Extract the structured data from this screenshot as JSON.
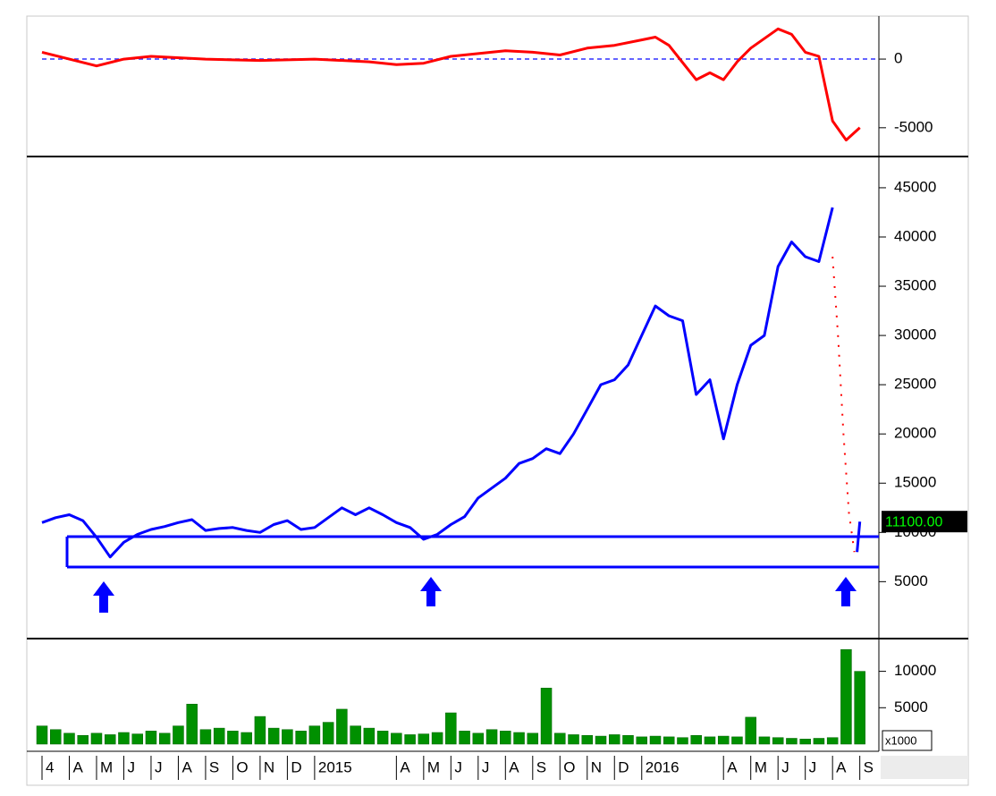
{
  "chart_data": [
    {
      "type": "line",
      "xlim": [
        0,
        30.7
      ],
      "ylim": [
        -6900,
        3000
      ],
      "yticks": [
        0,
        -5000
      ],
      "hlines": [
        0
      ],
      "hline_color": "#3030ff",
      "series": [
        {
          "color": "#ff0000",
          "x": [
            0,
            1,
            2,
            3,
            4,
            6,
            8,
            10,
            12,
            13,
            14,
            15,
            17,
            18,
            19,
            20,
            21,
            22,
            22.5,
            23,
            24,
            24.5,
            25,
            25.5,
            26,
            27,
            27.5,
            28,
            28.5,
            29,
            29.5,
            30
          ],
          "values": [
            500,
            0,
            -500,
            0,
            200,
            0,
            -100,
            0,
            -200,
            -400,
            -300,
            200,
            600,
            500,
            300,
            800,
            1000,
            1400,
            1600,
            1000,
            -1500,
            -1000,
            -1500,
            -200,
            800,
            2200,
            1800,
            500,
            200,
            -4500,
            -5900,
            -5000
          ]
        }
      ]
    },
    {
      "type": "line",
      "xlim": [
        0,
        30.7
      ],
      "ylim": [
        -600,
        47900
      ],
      "yticks": [
        5000,
        10000,
        15000,
        20000,
        25000,
        30000,
        35000,
        40000,
        45000
      ],
      "last_price": {
        "value": 11100,
        "label": "11100.00"
      },
      "series": [
        {
          "color": "#0000ff",
          "x": [
            0,
            0.5,
            1,
            1.5,
            2,
            2.5,
            3,
            3.5,
            4,
            4.5,
            5,
            5.5,
            6,
            6.5,
            7,
            7.5,
            8,
            8.5,
            9,
            9.5,
            10,
            10.5,
            11,
            11.5,
            12,
            12.5,
            13,
            13.5,
            14,
            14.5,
            15,
            15.5,
            16,
            16.5,
            17,
            17.5,
            18,
            18.5,
            19,
            19.5,
            20,
            20.5,
            21,
            21.5,
            22,
            22.5,
            23,
            23.5,
            24,
            24.5,
            25,
            25.5,
            26,
            26.5,
            27,
            27.5,
            28,
            28.5,
            29,
            29.5,
            29.9,
            30
          ],
          "values": [
            11000,
            11500,
            11800,
            11200,
            9500,
            7500,
            9000,
            9800,
            10300,
            10600,
            11000,
            11300,
            10200,
            10400,
            10500,
            10200,
            10000,
            10800,
            11200,
            10300,
            10500,
            11500,
            12500,
            11800,
            12500,
            11800,
            11000,
            10500,
            9300,
            9800,
            10800,
            11600,
            13500,
            14500,
            15500,
            17000,
            17500,
            18500,
            18000,
            20000,
            22500,
            25000,
            25500,
            27000,
            30000,
            33000,
            32000,
            31500,
            24000,
            25500,
            19500,
            25000,
            29000,
            30000,
            37000,
            39500,
            38000,
            37500,
            43000,
            null,
            8000,
            11100
          ]
        },
        {
          "color": "#ff0000",
          "dash": true,
          "x": [
            29,
            29.2,
            29.4,
            29.6,
            29.8
          ],
          "values": [
            38000,
            30000,
            20000,
            12000,
            8000
          ]
        }
      ]
    },
    {
      "type": "bar",
      "xlim": [
        0,
        30.7
      ],
      "ylim": [
        0,
        14250
      ],
      "yticks": [
        5000,
        10000
      ],
      "unit_label": "x1000",
      "color": "#009000",
      "x": [
        0,
        0.5,
        1,
        1.5,
        2,
        2.5,
        3,
        3.5,
        4,
        4.5,
        5,
        5.5,
        6,
        6.5,
        7,
        7.5,
        8,
        8.5,
        9,
        9.5,
        10,
        10.5,
        11,
        11.5,
        12,
        12.5,
        13,
        13.5,
        14,
        14.5,
        15,
        15.5,
        16,
        16.5,
        17,
        17.5,
        18,
        18.5,
        19,
        19.5,
        20,
        20.5,
        21,
        21.5,
        22,
        22.5,
        23,
        23.5,
        24,
        24.5,
        25,
        25.5,
        26,
        26.5,
        27,
        27.5,
        28,
        28.5,
        29,
        29.5,
        30
      ],
      "values": [
        2500,
        2000,
        1500,
        1200,
        1500,
        1300,
        1600,
        1400,
        1800,
        1500,
        2500,
        5500,
        2000,
        2200,
        1800,
        1600,
        3800,
        2200,
        2000,
        1800,
        2500,
        3000,
        4800,
        2500,
        2200,
        1800,
        1500,
        1300,
        1400,
        1600,
        4300,
        1800,
        1500,
        2000,
        1800,
        1600,
        1500,
        7700,
        1500,
        1300,
        1200,
        1100,
        1300,
        1200,
        1000,
        1100,
        1000,
        900,
        1200,
        1000,
        1100,
        1000,
        3700,
        1000,
        900,
        800,
        700,
        800,
        900,
        13000,
        10000
      ],
      "xticks": [
        {
          "value": 0,
          "label": "4"
        },
        {
          "value": 1,
          "label": "A"
        },
        {
          "value": 2,
          "label": "M"
        },
        {
          "value": 3,
          "label": "J"
        },
        {
          "value": 4,
          "label": "J"
        },
        {
          "value": 5,
          "label": "A"
        },
        {
          "value": 6,
          "label": "S"
        },
        {
          "value": 7,
          "label": "O"
        },
        {
          "value": 8,
          "label": "N"
        },
        {
          "value": 9,
          "label": "D"
        },
        {
          "value": 10,
          "label": "2015"
        },
        {
          "value": 13,
          "label": "A"
        },
        {
          "value": 14,
          "label": "M"
        },
        {
          "value": 15,
          "label": "J"
        },
        {
          "value": 16,
          "label": "J"
        },
        {
          "value": 17,
          "label": "A"
        },
        {
          "value": 18,
          "label": "S"
        },
        {
          "value": 19,
          "label": "O"
        },
        {
          "value": 20,
          "label": "N"
        },
        {
          "value": 21,
          "label": "D"
        },
        {
          "value": 22,
          "label": "2016"
        },
        {
          "value": 25,
          "label": "A"
        },
        {
          "value": 26,
          "label": "M"
        },
        {
          "value": 27,
          "label": "J"
        },
        {
          "value": 28,
          "label": "J"
        },
        {
          "value": 29,
          "label": "A"
        },
        {
          "value": 30,
          "label": "S"
        }
      ]
    }
  ]
}
